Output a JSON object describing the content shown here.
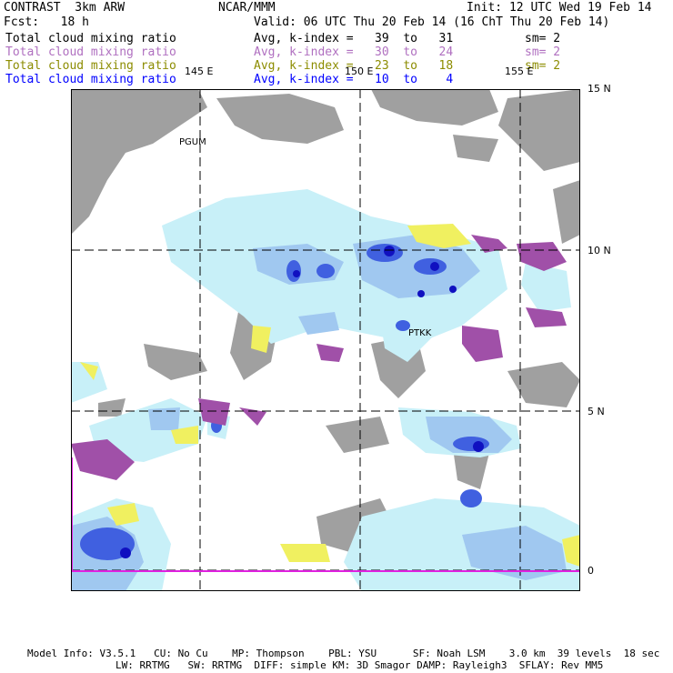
{
  "header": {
    "model_name": "CONTRAST  3km ARW",
    "org": "NCAR/MMM",
    "init": "Init: 12 UTC Wed 19 Feb 14",
    "fcst": "Fcst:   18 h",
    "valid": "Valid: 06 UTC Thu 20 Feb 14 (16 ChT Thu 20 Feb 14)"
  },
  "legend": [
    {
      "field": "Total cloud mixing ratio",
      "range": "Avg, k-index =   39  to   31",
      "sm": "sm= 2",
      "color": "#000000"
    },
    {
      "field": "Total cloud mixing ratio",
      "range": "Avg, k-index =   30  to   24",
      "sm": "sm= 2",
      "color": "#b070c0"
    },
    {
      "field": "Total cloud mixing ratio",
      "range": "Avg, k-index =   23  to   18",
      "sm": "sm= 2",
      "color": "#8c8c00"
    },
    {
      "field": "Total cloud mixing ratio",
      "range": "Avg, k-index =   10  to    4",
      "sm": "",
      "color": "#0000ff"
    }
  ],
  "map": {
    "lon_labels": [
      "145 E",
      "150 E",
      "155 E"
    ],
    "lat_labels": [
      "15 N",
      "10 N",
      "5 N",
      "0"
    ],
    "stations": [
      "PGUM",
      "PTKK"
    ],
    "colors": {
      "level1": "#a0a0a0",
      "level2": "#a050a8",
      "level3": "#f0f060",
      "level4_light": "#c8f0f8",
      "level4_mid": "#a0c8f0",
      "level4_dark": "#4060e0",
      "level4_core": "#1010c0"
    }
  },
  "footer": {
    "line1": "Model Info: V3.5.1   CU: No Cu    MP: Thompson    PBL: YSU      SF: Noah LSM    3.0 km  39 levels  18 sec",
    "line2": "LW: RRTMG   SW: RRTMG  DIFF: simple KM: 3D Smagor DAMP: Rayleigh3  SFLAY: Rev MM5"
  }
}
